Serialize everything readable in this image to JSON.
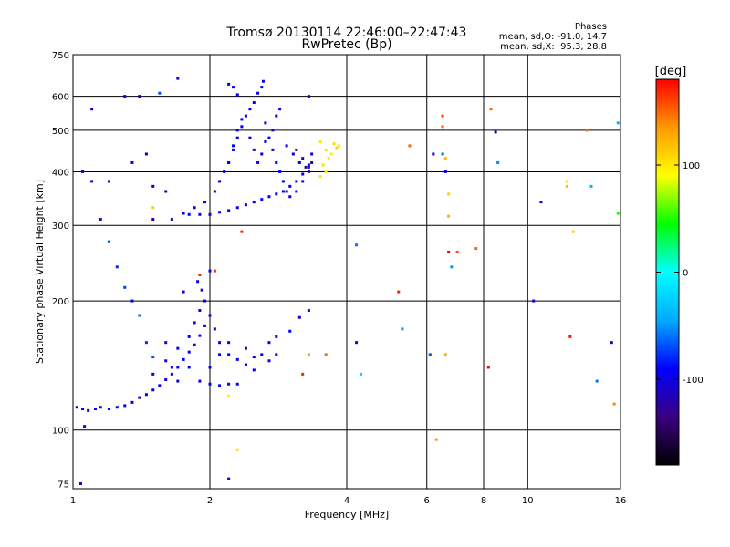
{
  "chart_data": {
    "type": "scatter",
    "title": "Tromsø 20130114 22:46:00–22:47:43",
    "subtitle": "RwPretec (Bp)",
    "xlabel": "Frequency [MHz]",
    "ylabel": "Stationary phase Virtual Height [km]",
    "x_scale": "log2",
    "y_scale": "log",
    "xlim": [
      1,
      16
    ],
    "ylim": [
      73,
      750
    ],
    "x_ticks": [
      1,
      2,
      4,
      6,
      8,
      10,
      16
    ],
    "y_ticks": [
      75,
      100,
      200,
      300,
      400,
      500,
      600,
      750
    ],
    "grid": true,
    "stats": {
      "heading": "Phases",
      "line1": "mean, sd,O: -91.0, 14.7",
      "line2": "mean, sd,X:  95.3, 28.8"
    },
    "colorbar": {
      "label": "[deg]",
      "range": [
        -180,
        180
      ],
      "tick_labels": [
        "100",
        "0",
        "-100"
      ],
      "tick_values": [
        100,
        0,
        -100
      ],
      "stops": [
        "#000000",
        "#3a0080",
        "#0000ff",
        "#00aaff",
        "#00ffff",
        "#00ff00",
        "#ffff00",
        "#ff9900",
        "#ff0000"
      ]
    },
    "series": [
      {
        "points": [
          [
            1.02,
            113,
            -95
          ],
          [
            1.05,
            112,
            -90
          ],
          [
            1.08,
            111,
            -100
          ],
          [
            1.12,
            112,
            -95
          ],
          [
            1.15,
            113,
            -92
          ],
          [
            1.2,
            112,
            -98
          ],
          [
            1.25,
            113,
            -94
          ],
          [
            1.3,
            114,
            -96
          ],
          [
            1.35,
            116,
            -100
          ],
          [
            1.4,
            119,
            -93
          ],
          [
            1.45,
            121,
            -97
          ],
          [
            1.5,
            124,
            -95
          ],
          [
            1.55,
            127,
            -90
          ],
          [
            1.6,
            131,
            -98
          ],
          [
            1.65,
            135,
            -94
          ],
          [
            1.7,
            140,
            -96
          ],
          [
            1.75,
            146,
            -92
          ],
          [
            1.8,
            152,
            -99
          ],
          [
            1.85,
            158,
            -95
          ],
          [
            1.9,
            166,
            -93
          ],
          [
            1.95,
            175,
            -97
          ],
          [
            2.0,
            185,
            -95
          ],
          [
            2.05,
            172,
            -90
          ],
          [
            2.1,
            160,
            -98
          ],
          [
            2.2,
            150,
            -93
          ],
          [
            2.3,
            146,
            -96
          ],
          [
            2.4,
            142,
            -94
          ],
          [
            2.5,
            138,
            -92
          ],
          [
            2.6,
            150,
            -99
          ],
          [
            2.7,
            160,
            -95
          ],
          [
            2.8,
            165,
            -97
          ],
          [
            3.0,
            170,
            -93
          ],
          [
            1.5,
            135,
            -98
          ],
          [
            1.6,
            145,
            -94
          ],
          [
            1.7,
            155,
            -96
          ],
          [
            1.8,
            165,
            -92
          ],
          [
            1.85,
            178,
            -99
          ],
          [
            1.9,
            190,
            -95
          ],
          [
            1.95,
            200,
            -93
          ],
          [
            1.92,
            212,
            -97
          ],
          [
            1.88,
            222,
            -90
          ],
          [
            1.8,
            140,
            -94
          ],
          [
            1.7,
            130,
            -95
          ],
          [
            1.9,
            130,
            -96
          ],
          [
            2.0,
            128,
            -92
          ],
          [
            2.1,
            127,
            -99
          ],
          [
            2.2,
            128,
            -95
          ],
          [
            2.3,
            128,
            -93
          ],
          [
            2.0,
            140,
            -97
          ],
          [
            2.1,
            150,
            -95
          ],
          [
            2.2,
            160,
            -94
          ],
          [
            2.4,
            155,
            -96
          ],
          [
            2.5,
            148,
            -92
          ],
          [
            2.7,
            145,
            -98
          ],
          [
            2.8,
            150,
            -94
          ],
          [
            1.75,
            320,
            -95
          ],
          [
            1.85,
            330,
            -96
          ],
          [
            1.95,
            340,
            -94
          ],
          [
            2.05,
            360,
            -97
          ],
          [
            2.1,
            380,
            -92
          ],
          [
            2.15,
            400,
            -98
          ],
          [
            2.2,
            420,
            -95
          ],
          [
            2.25,
            450,
            -93
          ],
          [
            2.3,
            480,
            -97
          ],
          [
            2.35,
            510,
            -95
          ],
          [
            2.4,
            540,
            -94
          ],
          [
            2.45,
            560,
            -96
          ],
          [
            2.5,
            580,
            -92
          ],
          [
            2.55,
            610,
            -99
          ],
          [
            2.6,
            630,
            -95
          ],
          [
            2.62,
            650,
            -93
          ],
          [
            2.65,
            520,
            -97
          ],
          [
            2.7,
            480,
            -95
          ],
          [
            2.75,
            450,
            -96
          ],
          [
            2.8,
            420,
            -94
          ],
          [
            2.85,
            400,
            -92
          ],
          [
            2.9,
            380,
            -97
          ],
          [
            2.95,
            360,
            -95
          ],
          [
            3.0,
            350,
            -93
          ],
          [
            3.1,
            360,
            -96
          ],
          [
            3.2,
            380,
            -94
          ],
          [
            3.3,
            410,
            -92
          ],
          [
            3.35,
            440,
            -98
          ],
          [
            1.8,
            318,
            -90
          ],
          [
            1.9,
            318,
            -94
          ],
          [
            2.0,
            318,
            -96
          ],
          [
            2.1,
            322,
            -95
          ],
          [
            2.2,
            325,
            -93
          ],
          [
            2.3,
            330,
            -97
          ],
          [
            2.4,
            335,
            -95
          ],
          [
            2.5,
            340,
            -94
          ],
          [
            2.6,
            345,
            -92
          ],
          [
            2.7,
            350,
            -96
          ],
          [
            2.8,
            355,
            -98
          ],
          [
            2.9,
            360,
            -95
          ],
          [
            3.0,
            370,
            -93
          ],
          [
            3.1,
            380,
            -97
          ],
          [
            3.2,
            395,
            -94
          ],
          [
            3.3,
            415,
            -96
          ],
          [
            2.2,
            420,
            -95
          ],
          [
            2.25,
            460,
            -92
          ],
          [
            2.3,
            500,
            -97
          ],
          [
            2.35,
            530,
            -94
          ],
          [
            2.45,
            480,
            -96
          ],
          [
            2.5,
            450,
            -93
          ],
          [
            2.55,
            420,
            -95
          ],
          [
            2.6,
            440,
            -97
          ],
          [
            2.65,
            470,
            -94
          ],
          [
            2.75,
            500,
            -96
          ],
          [
            2.8,
            540,
            -92
          ],
          [
            2.85,
            560,
            -98
          ],
          [
            2.95,
            460,
            -95
          ],
          [
            3.05,
            440,
            -93
          ],
          [
            3.15,
            420,
            -97
          ],
          [
            3.1,
            450,
            -130
          ],
          [
            3.2,
            430,
            -135
          ],
          [
            3.25,
            410,
            -128
          ],
          [
            3.3,
            400,
            -132
          ],
          [
            3.35,
            420,
            -126
          ],
          [
            3.5,
            470,
            100
          ],
          [
            3.6,
            450,
            105
          ],
          [
            3.7,
            440,
            95
          ],
          [
            3.8,
            455,
            110
          ],
          [
            3.65,
            430,
            98
          ],
          [
            3.55,
            415,
            103
          ],
          [
            3.75,
            465,
            108
          ],
          [
            3.85,
            460,
            100
          ],
          [
            3.6,
            400,
            95
          ],
          [
            3.5,
            390,
            102
          ],
          [
            1.05,
            400,
            -110
          ],
          [
            1.1,
            560,
            -100
          ],
          [
            1.1,
            380,
            -105
          ],
          [
            1.15,
            310,
            -110
          ],
          [
            1.2,
            380,
            -100
          ],
          [
            1.3,
            600,
            -95
          ],
          [
            1.35,
            420,
            -98
          ],
          [
            1.4,
            600,
            -105
          ],
          [
            1.45,
            440,
            -100
          ],
          [
            1.5,
            370,
            -95
          ],
          [
            1.5,
            310,
            -130
          ],
          [
            1.55,
            610,
            -70
          ],
          [
            1.6,
            360,
            -110
          ],
          [
            1.65,
            310,
            -120
          ],
          [
            1.7,
            660,
            -110
          ],
          [
            1.5,
            330,
            110
          ],
          [
            1.2,
            275,
            -60
          ],
          [
            1.25,
            240,
            -80
          ],
          [
            1.3,
            215,
            -75
          ],
          [
            1.35,
            200,
            -90
          ],
          [
            1.4,
            185,
            -60
          ],
          [
            1.45,
            160,
            -80
          ],
          [
            1.5,
            148,
            -70
          ],
          [
            1.6,
            160,
            -100
          ],
          [
            1.65,
            140,
            -90
          ],
          [
            1.75,
            210,
            -100
          ],
          [
            1.9,
            230,
            170
          ],
          [
            2.0,
            235,
            -95
          ],
          [
            2.2,
            640,
            -100
          ],
          [
            2.25,
            630,
            -95
          ],
          [
            2.3,
            605,
            -92
          ],
          [
            3.3,
            600,
            -100
          ],
          [
            3.3,
            190,
            -105
          ],
          [
            3.15,
            183,
            -100
          ],
          [
            4.2,
            270,
            -60
          ],
          [
            4.2,
            160,
            -100
          ],
          [
            5.3,
            172,
            -50
          ],
          [
            5.5,
            460,
            150
          ],
          [
            6.2,
            440,
            -100
          ],
          [
            6.5,
            540,
            160
          ],
          [
            6.5,
            510,
            150
          ],
          [
            6.5,
            440,
            -60
          ],
          [
            6.6,
            430,
            120
          ],
          [
            7.0,
            260,
            160
          ],
          [
            6.8,
            240,
            -50
          ],
          [
            6.7,
            355,
            110
          ],
          [
            6.6,
            400,
            -100
          ],
          [
            6.7,
            315,
            125
          ],
          [
            6.7,
            260,
            180
          ],
          [
            8.3,
            560,
            150
          ],
          [
            8.5,
            495,
            -110
          ],
          [
            8.6,
            420,
            -55
          ],
          [
            8.2,
            140,
            180
          ],
          [
            10.3,
            200,
            -100
          ],
          [
            10.7,
            340,
            -115
          ],
          [
            12.2,
            380,
            100
          ],
          [
            12.2,
            370,
            120
          ],
          [
            12.6,
            290,
            110
          ],
          [
            13.5,
            500,
            150
          ],
          [
            13.8,
            370,
            -40
          ],
          [
            14.2,
            130,
            -60
          ],
          [
            15.3,
            160,
            -110
          ],
          [
            15.5,
            115,
            140
          ],
          [
            15.8,
            520,
            -40
          ],
          [
            15.8,
            320,
            45
          ],
          [
            5.2,
            210,
            170
          ],
          [
            4.3,
            135,
            -20
          ],
          [
            3.6,
            150,
            150
          ],
          [
            3.3,
            150,
            135
          ],
          [
            3.2,
            135,
            170
          ],
          [
            6.1,
            150,
            -70
          ],
          [
            6.3,
            95,
            135
          ],
          [
            6.6,
            150,
            125
          ],
          [
            7.7,
            265,
            150
          ],
          [
            12.4,
            165,
            175
          ],
          [
            2.2,
            120,
            100
          ],
          [
            2.3,
            90,
            105
          ],
          [
            2.2,
            77,
            -110
          ],
          [
            2.35,
            290,
            170
          ],
          [
            1.06,
            102,
            -110
          ],
          [
            1.04,
            75,
            -110
          ],
          [
            2.05,
            235,
            170
          ]
        ]
      }
    ]
  }
}
